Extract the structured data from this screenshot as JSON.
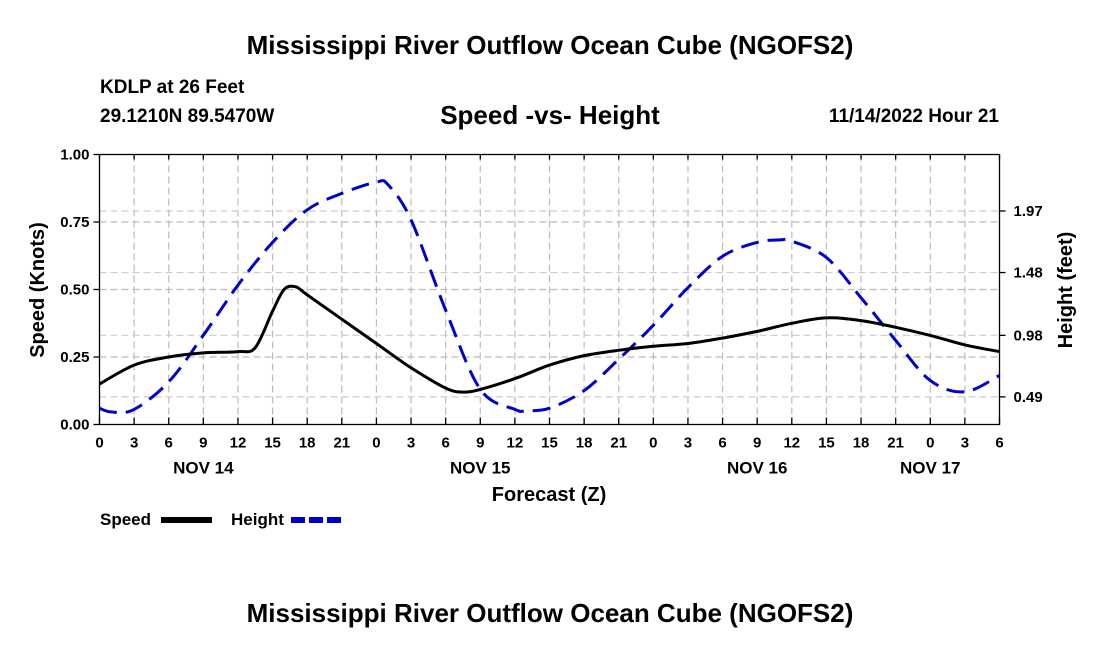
{
  "header": {
    "title": "Mississippi River Outflow Ocean Cube (NGOFS2)",
    "station": "KDLP at 26 Feet",
    "coords": "29.1210N  89.5470W",
    "subtitle": "Speed -vs- Height",
    "datetime": "11/14/2022 Hour 21"
  },
  "footer": {
    "title": "Mississippi River Outflow Ocean Cube (NGOFS2)"
  },
  "chart_data": {
    "type": "line",
    "title": "Speed -vs- Height",
    "xlabel": "Forecast (Z)",
    "ylabel": "Speed (Knots)",
    "y2label": "Height (feet)",
    "x_range": [
      0,
      78
    ],
    "x_unit": "hours since NOV 14 00Z",
    "x_ticks": [
      0,
      3,
      6,
      9,
      12,
      15,
      18,
      21,
      24,
      27,
      30,
      33,
      36,
      39,
      42,
      45,
      48,
      51,
      54,
      57,
      60,
      63,
      66,
      69,
      72,
      75,
      78
    ],
    "x_tick_labels": [
      "0",
      "3",
      "6",
      "9",
      "12",
      "15",
      "18",
      "21",
      "0",
      "3",
      "6",
      "9",
      "12",
      "15",
      "18",
      "21",
      "0",
      "3",
      "6",
      "9",
      "12",
      "15",
      "18",
      "21",
      "0",
      "3",
      "6"
    ],
    "date_labels": [
      {
        "x": 9,
        "label": "NOV 14"
      },
      {
        "x": 33,
        "label": "NOV 15"
      },
      {
        "x": 57,
        "label": "NOV 16"
      },
      {
        "x": 72,
        "label": "NOV 17"
      }
    ],
    "ylim": [
      0,
      1
    ],
    "y_ticks": [
      0,
      0.25,
      0.5,
      0.75,
      1.0
    ],
    "y_tick_labels": [
      "0.00",
      "0.25",
      "0.50",
      "0.75",
      "1.00"
    ],
    "y2lim": [
      0.27,
      2.42
    ],
    "y2_ticks": [
      0.49,
      0.98,
      1.48,
      1.97
    ],
    "y2_tick_labels": [
      "0.49",
      "0.98",
      "1.48",
      "1.97"
    ],
    "grid": true,
    "legend": [
      {
        "name": "Speed",
        "color": "#000000",
        "dash": "solid"
      },
      {
        "name": "Height",
        "color": "#0000cc",
        "dash": "dashed"
      }
    ],
    "series": [
      {
        "name": "Speed",
        "axis": "left",
        "color": "#000000",
        "dash": "solid",
        "x": [
          0,
          3,
          6,
          9,
          12,
          13.5,
          15,
          16,
          17,
          18,
          21,
          24,
          27,
          30,
          31.5,
          33,
          36,
          39,
          42,
          45,
          48,
          51,
          54,
          57,
          60,
          63,
          66,
          69,
          72,
          75,
          78
        ],
        "values": [
          0.15,
          0.22,
          0.25,
          0.265,
          0.27,
          0.285,
          0.42,
          0.5,
          0.51,
          0.48,
          0.39,
          0.3,
          0.21,
          0.135,
          0.12,
          0.13,
          0.17,
          0.22,
          0.255,
          0.275,
          0.29,
          0.3,
          0.32,
          0.345,
          0.375,
          0.395,
          0.385,
          0.36,
          0.33,
          0.295,
          0.27
        ]
      },
      {
        "name": "Height",
        "axis": "right",
        "color": "#0000cc",
        "dash": "dashed",
        "x": [
          0,
          1,
          3,
          6,
          9,
          12,
          15,
          18,
          21,
          24,
          25,
          27,
          30,
          33,
          36,
          37,
          39,
          42,
          45,
          48,
          51,
          54,
          57,
          59,
          60,
          63,
          66,
          69,
          72,
          75,
          78
        ],
        "values": [
          0.4,
          0.37,
          0.39,
          0.61,
          0.98,
          1.38,
          1.72,
          1.98,
          2.11,
          2.2,
          2.18,
          1.9,
          1.18,
          0.55,
          0.39,
          0.38,
          0.4,
          0.54,
          0.79,
          1.06,
          1.36,
          1.61,
          1.72,
          1.74,
          1.73,
          1.6,
          1.28,
          0.94,
          0.62,
          0.53,
          0.66
        ]
      }
    ]
  }
}
